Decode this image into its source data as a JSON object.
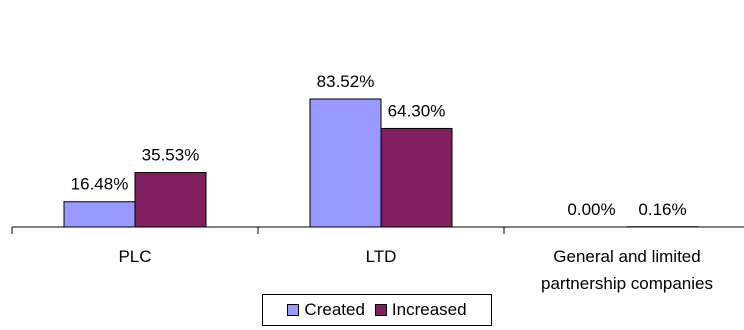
{
  "chart_data": {
    "type": "bar",
    "categories": [
      "PLC",
      "LTD",
      "General and limited partnership companies"
    ],
    "category_lines": [
      [
        "PLC"
      ],
      [
        "LTD"
      ],
      [
        "General and limited",
        "partnership companies"
      ]
    ],
    "series": [
      {
        "name": "Created",
        "values": [
          16.48,
          83.52,
          0.0
        ],
        "labels": [
          "16.48%",
          "83.52%",
          "0.00%"
        ],
        "color": "#9999ff"
      },
      {
        "name": "Increased",
        "values": [
          35.53,
          64.3,
          0.16
        ],
        "labels": [
          "35.53%",
          "64.30%",
          "0.16%"
        ],
        "color": "#802060"
      }
    ],
    "ylim": [
      0,
      100
    ],
    "grid": false,
    "legend_position": "bottom"
  }
}
